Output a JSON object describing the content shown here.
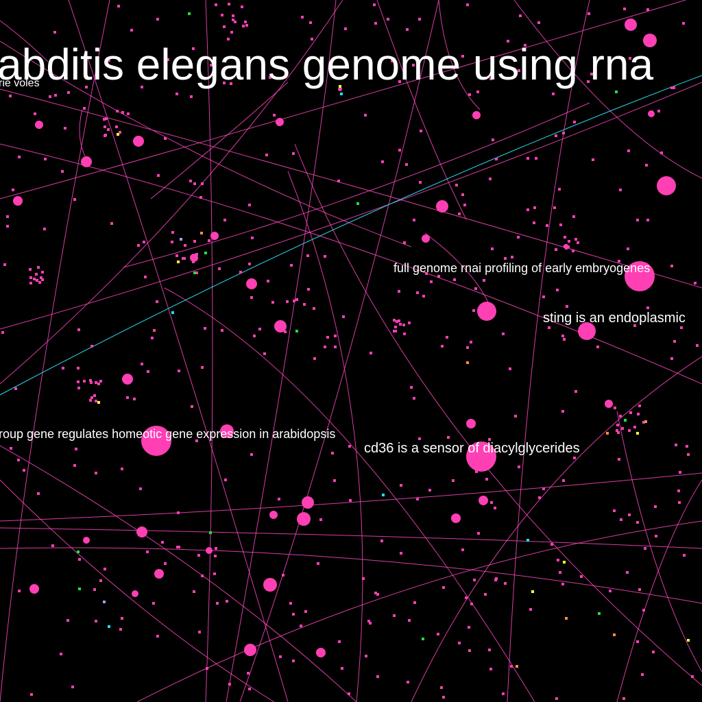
{
  "map": {
    "background": "#000000",
    "colors": {
      "primary": "#ff3fb4",
      "line": "#ff48c0",
      "cyan_line": "#30d8f0",
      "yellow": "#ffff30",
      "green": "#20e040",
      "cyan": "#20e0ff",
      "orange": "#ff9040",
      "lavender": "#a0a0ff"
    },
    "labels": {
      "title": "abditis elegans genome using rna",
      "voles": "rie voles",
      "rnai": "full genome rnai profiling of early embryogenes",
      "sting": "sting is an endoplasmic",
      "arabidopsis": "roup gene regulates homeotic gene expression in arabidopsis",
      "cd36": "cd36 is a sensor of diacylglycerides"
    }
  }
}
